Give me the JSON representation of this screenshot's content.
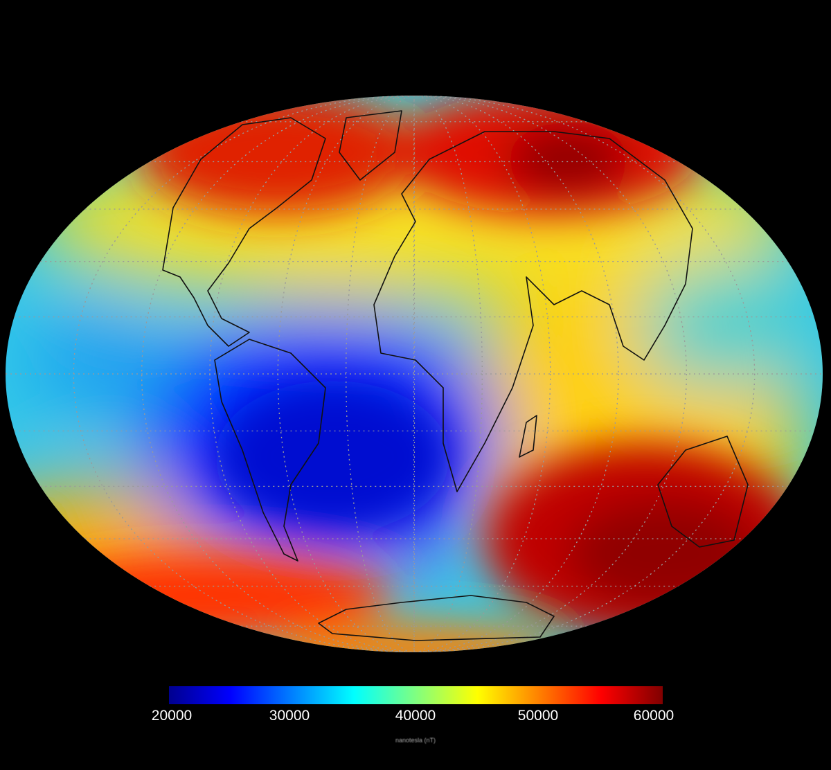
{
  "map": {
    "projection": "mollweide",
    "graticule": {
      "style": "dotted",
      "color": "#9a9a9a",
      "lon_step_deg": 30,
      "lat_step_deg": 15
    },
    "coastlines": true,
    "background": "#000000"
  },
  "colorbar": {
    "colormap": [
      "#00008f",
      "#0000ff",
      "#0080ff",
      "#00ffff",
      "#80ff80",
      "#ffff00",
      "#ff8000",
      "#ff0000",
      "#800000"
    ],
    "min": 20000,
    "max": 60000,
    "ticks": [
      "20000",
      "30000",
      "40000",
      "50000",
      "60000"
    ],
    "label": "nanotesla (nT)"
  }
}
